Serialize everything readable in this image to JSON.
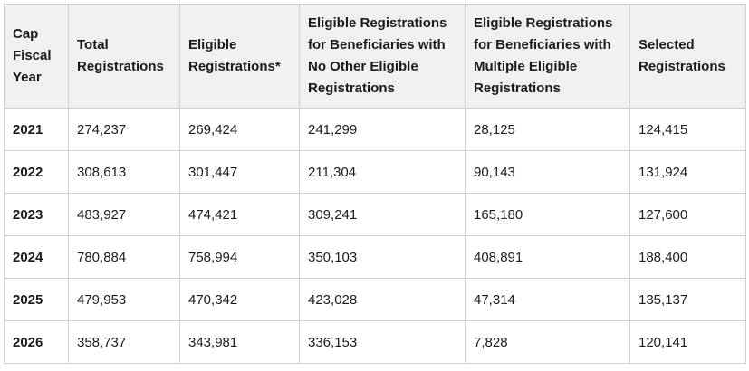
{
  "table": {
    "headers": [
      "Cap Fiscal Year",
      "Total Registrations",
      "Eligible Registrations*",
      "Eligible Registrations for Beneficiaries with No Other Eligible Registrations",
      "Eligible Registrations for Beneficiaries with Multiple Eligible Registrations",
      "Selected Registrations"
    ],
    "rows": [
      [
        "2021",
        "274,237",
        "269,424",
        "241,299",
        "28,125",
        "124,415"
      ],
      [
        "2022",
        "308,613",
        "301,447",
        "211,304",
        "90,143",
        "131,924"
      ],
      [
        "2023",
        "483,927",
        "474,421",
        "309,241",
        "165,180",
        "127,600"
      ],
      [
        "2024",
        "780,884",
        "758,994",
        "350,103",
        "408,891",
        "188,400"
      ],
      [
        "2025",
        "479,953",
        "470,342",
        "423,028",
        "47,314",
        "135,137"
      ],
      [
        "2026",
        "358,737",
        "343,981",
        "336,153",
        "7,828",
        "120,141"
      ]
    ]
  }
}
